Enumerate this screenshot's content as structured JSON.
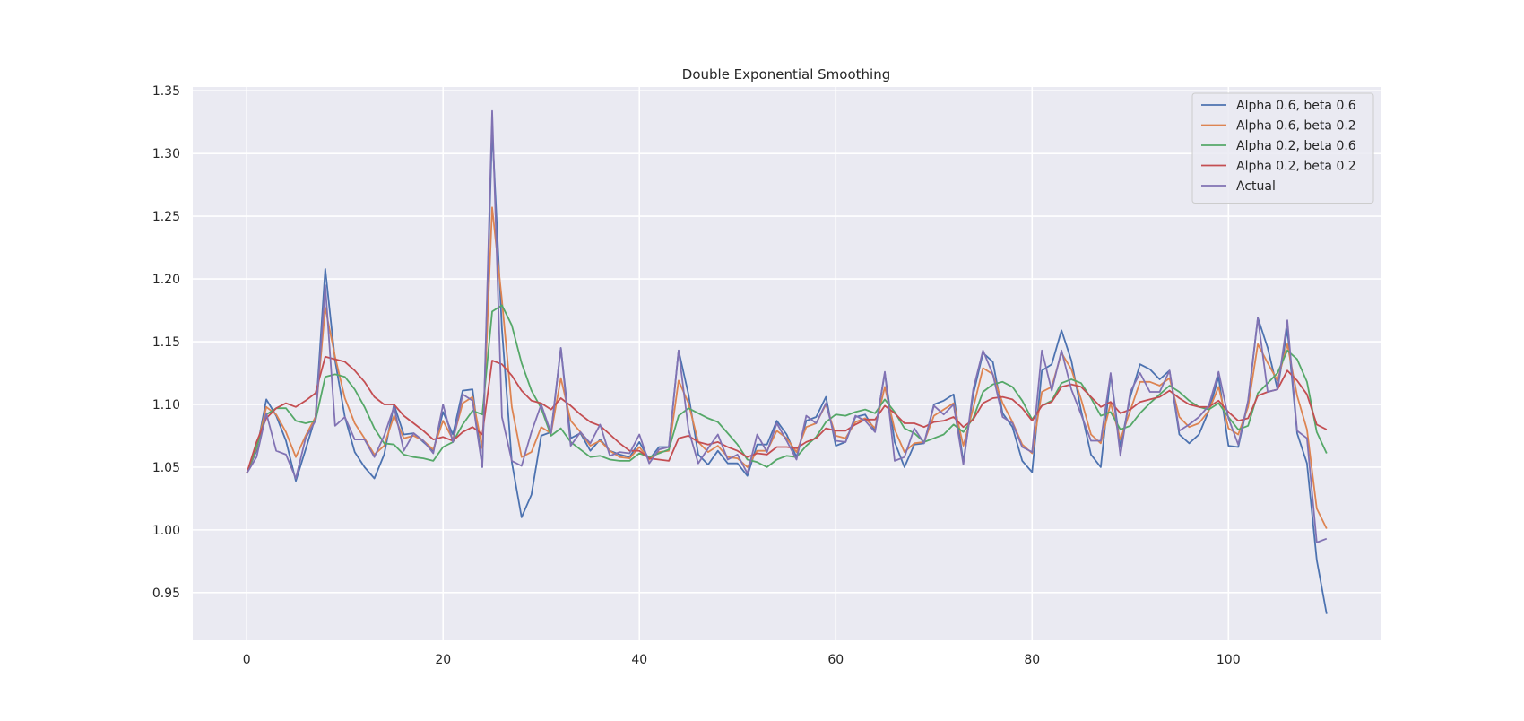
{
  "chart_data": {
    "type": "line",
    "title": "Double Exponential Smoothing",
    "xlabel": "",
    "ylabel": "",
    "xlim": [
      -5.5,
      115.5
    ],
    "ylim": [
      0.912,
      1.353
    ],
    "x_ticks": [
      0,
      20,
      40,
      60,
      80,
      100
    ],
    "y_ticks": [
      0.95,
      1.0,
      1.05,
      1.1,
      1.15,
      1.2,
      1.25,
      1.3,
      1.35
    ],
    "y_tick_labels": [
      "0.95",
      "1.00",
      "1.05",
      "1.10",
      "1.15",
      "1.20",
      "1.25",
      "1.30",
      "1.35"
    ],
    "grid": true,
    "legend_position": "top-right",
    "colors": {
      "background": "#eaeaf2",
      "grid": "#ffffff",
      "text": "#262626"
    },
    "series": [
      {
        "name": "Alpha 0.6, beta 0.6",
        "color": "#4c72b0",
        "x_start": 0,
        "values": [
          1.045,
          1.063,
          1.104,
          1.091,
          1.071,
          1.039,
          1.064,
          1.09,
          1.208,
          1.135,
          1.09,
          1.062,
          1.05,
          1.041,
          1.06,
          1.1,
          1.076,
          1.077,
          1.07,
          1.063,
          1.094,
          1.076,
          1.111,
          1.112,
          1.05,
          1.32,
          1.16,
          1.054,
          1.01,
          1.028,
          1.075,
          1.078,
          1.145,
          1.073,
          1.077,
          1.063,
          1.072,
          1.063,
          1.06,
          1.058,
          1.07,
          1.056,
          1.066,
          1.066,
          1.143,
          1.108,
          1.06,
          1.052,
          1.063,
          1.053,
          1.053,
          1.043,
          1.068,
          1.068,
          1.087,
          1.076,
          1.058,
          1.087,
          1.09,
          1.106,
          1.067,
          1.07,
          1.09,
          1.092,
          1.079,
          1.125,
          1.07,
          1.05,
          1.068,
          1.069,
          1.1,
          1.103,
          1.108,
          1.054,
          1.108,
          1.141,
          1.134,
          1.093,
          1.082,
          1.055,
          1.046,
          1.127,
          1.132,
          1.159,
          1.135,
          1.095,
          1.06,
          1.05,
          1.124,
          1.066,
          1.106,
          1.132,
          1.128,
          1.12,
          1.127,
          1.076,
          1.069,
          1.076,
          1.095,
          1.122,
          1.067,
          1.066,
          1.102,
          1.169,
          1.145,
          1.112,
          1.16,
          1.077,
          1.053,
          0.976,
          0.933
        ]
      },
      {
        "name": "Alpha 0.6, beta 0.2",
        "color": "#dd8452",
        "x_start": 0,
        "values": [
          1.045,
          1.065,
          1.098,
          1.092,
          1.078,
          1.058,
          1.075,
          1.09,
          1.177,
          1.138,
          1.105,
          1.085,
          1.073,
          1.06,
          1.067,
          1.091,
          1.073,
          1.075,
          1.071,
          1.064,
          1.087,
          1.072,
          1.101,
          1.106,
          1.065,
          1.257,
          1.183,
          1.098,
          1.058,
          1.062,
          1.082,
          1.077,
          1.121,
          1.087,
          1.078,
          1.067,
          1.071,
          1.063,
          1.058,
          1.057,
          1.066,
          1.056,
          1.062,
          1.063,
          1.119,
          1.101,
          1.07,
          1.062,
          1.067,
          1.058,
          1.057,
          1.05,
          1.063,
          1.063,
          1.079,
          1.073,
          1.062,
          1.082,
          1.085,
          1.1,
          1.075,
          1.073,
          1.086,
          1.089,
          1.081,
          1.114,
          1.08,
          1.062,
          1.069,
          1.07,
          1.091,
          1.096,
          1.101,
          1.067,
          1.097,
          1.129,
          1.124,
          1.101,
          1.086,
          1.068,
          1.061,
          1.11,
          1.114,
          1.141,
          1.128,
          1.104,
          1.076,
          1.069,
          1.101,
          1.072,
          1.095,
          1.118,
          1.118,
          1.115,
          1.121,
          1.09,
          1.082,
          1.085,
          1.095,
          1.114,
          1.081,
          1.076,
          1.098,
          1.148,
          1.133,
          1.119,
          1.148,
          1.107,
          1.08,
          1.017,
          1.001
        ]
      },
      {
        "name": "Alpha 0.2, beta 0.6",
        "color": "#55a868",
        "x_start": 0,
        "values": [
          1.045,
          1.066,
          1.092,
          1.097,
          1.097,
          1.087,
          1.085,
          1.087,
          1.122,
          1.124,
          1.122,
          1.112,
          1.098,
          1.081,
          1.069,
          1.068,
          1.06,
          1.058,
          1.057,
          1.055,
          1.066,
          1.07,
          1.084,
          1.095,
          1.092,
          1.174,
          1.179,
          1.163,
          1.133,
          1.111,
          1.097,
          1.075,
          1.081,
          1.07,
          1.064,
          1.058,
          1.059,
          1.056,
          1.055,
          1.055,
          1.061,
          1.058,
          1.061,
          1.064,
          1.091,
          1.097,
          1.093,
          1.089,
          1.086,
          1.077,
          1.068,
          1.056,
          1.054,
          1.05,
          1.056,
          1.059,
          1.058,
          1.067,
          1.074,
          1.086,
          1.092,
          1.091,
          1.094,
          1.096,
          1.093,
          1.104,
          1.094,
          1.081,
          1.077,
          1.07,
          1.073,
          1.076,
          1.084,
          1.078,
          1.089,
          1.11,
          1.116,
          1.118,
          1.114,
          1.103,
          1.088,
          1.099,
          1.103,
          1.117,
          1.12,
          1.117,
          1.105,
          1.091,
          1.094,
          1.08,
          1.083,
          1.093,
          1.101,
          1.108,
          1.115,
          1.11,
          1.103,
          1.098,
          1.096,
          1.101,
          1.09,
          1.08,
          1.083,
          1.109,
          1.117,
          1.125,
          1.143,
          1.136,
          1.118,
          1.078,
          1.061
        ]
      },
      {
        "name": "Alpha 0.2, beta 0.2",
        "color": "#c44e52",
        "x_start": 0,
        "values": [
          1.045,
          1.07,
          1.089,
          1.097,
          1.101,
          1.098,
          1.103,
          1.109,
          1.138,
          1.136,
          1.134,
          1.127,
          1.118,
          1.106,
          1.1,
          1.1,
          1.091,
          1.085,
          1.079,
          1.072,
          1.074,
          1.071,
          1.078,
          1.082,
          1.076,
          1.135,
          1.132,
          1.123,
          1.111,
          1.103,
          1.101,
          1.096,
          1.105,
          1.099,
          1.092,
          1.086,
          1.083,
          1.076,
          1.069,
          1.063,
          1.063,
          1.057,
          1.056,
          1.055,
          1.073,
          1.075,
          1.07,
          1.068,
          1.07,
          1.066,
          1.063,
          1.058,
          1.061,
          1.06,
          1.066,
          1.066,
          1.065,
          1.07,
          1.073,
          1.081,
          1.079,
          1.079,
          1.084,
          1.088,
          1.088,
          1.099,
          1.093,
          1.085,
          1.085,
          1.082,
          1.086,
          1.087,
          1.09,
          1.082,
          1.088,
          1.101,
          1.105,
          1.106,
          1.104,
          1.097,
          1.087,
          1.099,
          1.102,
          1.114,
          1.116,
          1.114,
          1.106,
          1.098,
          1.102,
          1.093,
          1.096,
          1.102,
          1.104,
          1.106,
          1.111,
          1.105,
          1.1,
          1.098,
          1.098,
          1.103,
          1.094,
          1.087,
          1.089,
          1.107,
          1.11,
          1.112,
          1.127,
          1.119,
          1.108,
          1.084,
          1.08
        ]
      },
      {
        "name": "Actual",
        "color": "#8172b3",
        "x_start": 0,
        "values": [
          1.045,
          1.058,
          1.093,
          1.063,
          1.06,
          1.041,
          1.073,
          1.087,
          1.195,
          1.083,
          1.09,
          1.072,
          1.072,
          1.058,
          1.075,
          1.098,
          1.063,
          1.077,
          1.071,
          1.061,
          1.1,
          1.07,
          1.108,
          1.103,
          1.05,
          1.334,
          1.09,
          1.055,
          1.051,
          1.078,
          1.1,
          1.077,
          1.145,
          1.067,
          1.078,
          1.069,
          1.084,
          1.059,
          1.062,
          1.061,
          1.076,
          1.053,
          1.064,
          1.066,
          1.143,
          1.08,
          1.053,
          1.065,
          1.076,
          1.056,
          1.06,
          1.045,
          1.076,
          1.062,
          1.085,
          1.071,
          1.056,
          1.091,
          1.085,
          1.101,
          1.071,
          1.07,
          1.091,
          1.087,
          1.078,
          1.126,
          1.055,
          1.058,
          1.081,
          1.069,
          1.099,
          1.092,
          1.1,
          1.052,
          1.112,
          1.143,
          1.124,
          1.09,
          1.085,
          1.066,
          1.062,
          1.143,
          1.111,
          1.143,
          1.112,
          1.092,
          1.071,
          1.071,
          1.125,
          1.059,
          1.11,
          1.125,
          1.11,
          1.11,
          1.127,
          1.079,
          1.084,
          1.09,
          1.099,
          1.126,
          1.089,
          1.068,
          1.103,
          1.169,
          1.11,
          1.112,
          1.167,
          1.079,
          1.073,
          0.99,
          0.993
        ]
      }
    ]
  }
}
